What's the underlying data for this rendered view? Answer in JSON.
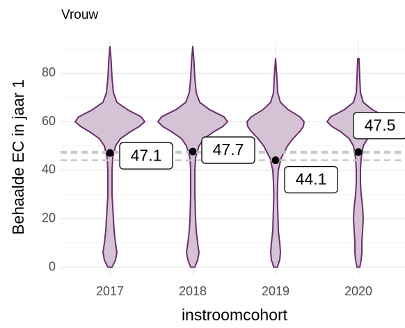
{
  "chart_data": {
    "type": "violin",
    "title": "Vrouw",
    "x_label": "instroomcohort",
    "y_label": "Behaalde EC in jaar 1",
    "categories": [
      "2017",
      "2018",
      "2019",
      "2020"
    ],
    "values": [
      47.1,
      47.7,
      44.1,
      47.5
    ],
    "fill": "#d5c3d5",
    "stroke": "#6a2e6a",
    "mean_color": "#000000",
    "mean_line_color": "#c8c8c8",
    "density_y": [
      0,
      3,
      6,
      10,
      15,
      20,
      25,
      30,
      35,
      40,
      45,
      50,
      53,
      56,
      58,
      60,
      62,
      65,
      68,
      72,
      78,
      86,
      91
    ],
    "violins": [
      {
        "density": [
          0.06,
          0.16,
          0.2,
          0.16,
          0.12,
          0.1,
          0.08,
          0.06,
          0.06,
          0.06,
          0.08,
          0.16,
          0.3,
          0.6,
          0.84,
          1,
          0.9,
          0.5,
          0.2,
          0.1,
          0.06,
          0.03,
          0
        ]
      },
      {
        "density": [
          0.06,
          0.14,
          0.18,
          0.14,
          0.1,
          0.08,
          0.07,
          0.06,
          0.06,
          0.06,
          0.08,
          0.18,
          0.32,
          0.62,
          0.86,
          1,
          0.9,
          0.48,
          0.2,
          0.1,
          0.06,
          0.03,
          0
        ]
      },
      {
        "density": [
          0.05,
          0.12,
          0.14,
          0.12,
          0.08,
          0.07,
          0.06,
          0.05,
          0.06,
          0.08,
          0.16,
          0.34,
          0.5,
          0.7,
          0.8,
          0.82,
          0.7,
          0.36,
          0.14,
          0.06,
          0.04,
          0,
          null
        ]
      },
      {
        "density": [
          0.04,
          0.08,
          0.1,
          0.1,
          0.12,
          0.14,
          0.12,
          0.08,
          0.06,
          0.06,
          0.08,
          0.14,
          0.26,
          0.52,
          0.76,
          0.9,
          0.8,
          0.4,
          0.14,
          0.06,
          0.04,
          0.02,
          null
        ]
      }
    ],
    "ylim": [
      -3,
      93
    ],
    "yticks": [
      0,
      20,
      40,
      60,
      80
    ],
    "yminorticks": [
      10,
      30,
      50,
      70,
      90
    ],
    "grid": true
  }
}
